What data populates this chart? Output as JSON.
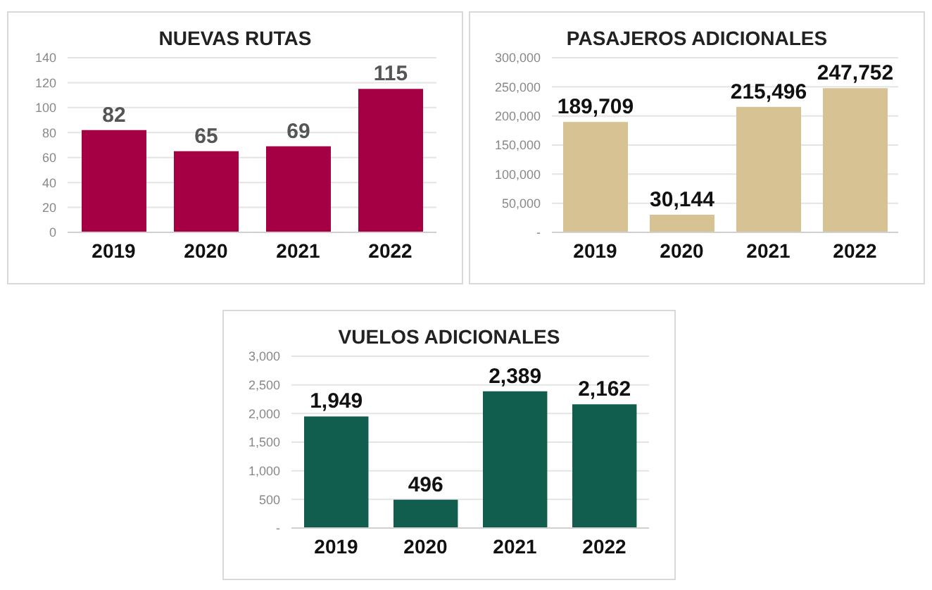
{
  "chart_data": [
    {
      "type": "bar",
      "title": "NUEVAS RUTAS",
      "categories": [
        "2019",
        "2020",
        "2021",
        "2022"
      ],
      "values": [
        82,
        65,
        69,
        115
      ],
      "color": "#a50044",
      "value_labels": [
        "82",
        "65",
        "69",
        "115"
      ],
      "ylim": [
        0,
        140
      ],
      "yticks": [
        0,
        20,
        40,
        60,
        80,
        100,
        120,
        140
      ],
      "grid": "y"
    },
    {
      "type": "bar",
      "title": "PASAJEROS ADICIONALES",
      "categories": [
        "2019",
        "2020",
        "2021",
        "2022"
      ],
      "values": [
        189709,
        30144,
        215496,
        247752
      ],
      "color": "#d6c292",
      "value_labels": [
        "189,709",
        "30,144",
        "215,496",
        "247,752"
      ],
      "ylim": [
        0,
        300000
      ],
      "yticks": [
        {
          "value": 0,
          "label": "-"
        },
        {
          "value": 50000,
          "label": "50,000"
        },
        {
          "value": 100000,
          "label": "100,000"
        },
        {
          "value": 150000,
          "label": "150,000"
        },
        {
          "value": 200000,
          "label": "200,000"
        },
        {
          "value": 250000,
          "label": "250,000"
        },
        {
          "value": 300000,
          "label": "300,000"
        }
      ],
      "grid": "y"
    },
    {
      "type": "bar",
      "title": "VUELOS ADICIONALES",
      "categories": [
        "2019",
        "2020",
        "2021",
        "2022"
      ],
      "values": [
        1949,
        496,
        2389,
        2162
      ],
      "color": "#115e4e",
      "value_labels": [
        "1,949",
        "496",
        "2,389",
        "2,162"
      ],
      "ylim": [
        0,
        3000
      ],
      "yticks": [
        {
          "value": 0,
          "label": "-"
        },
        {
          "value": 500,
          "label": "500"
        },
        {
          "value": 1000,
          "label": "1,000"
        },
        {
          "value": 1500,
          "label": "1,500"
        },
        {
          "value": 2000,
          "label": "2,000"
        },
        {
          "value": 2500,
          "label": "2,500"
        },
        {
          "value": 3000,
          "label": "3,000"
        }
      ],
      "grid": "y"
    }
  ]
}
